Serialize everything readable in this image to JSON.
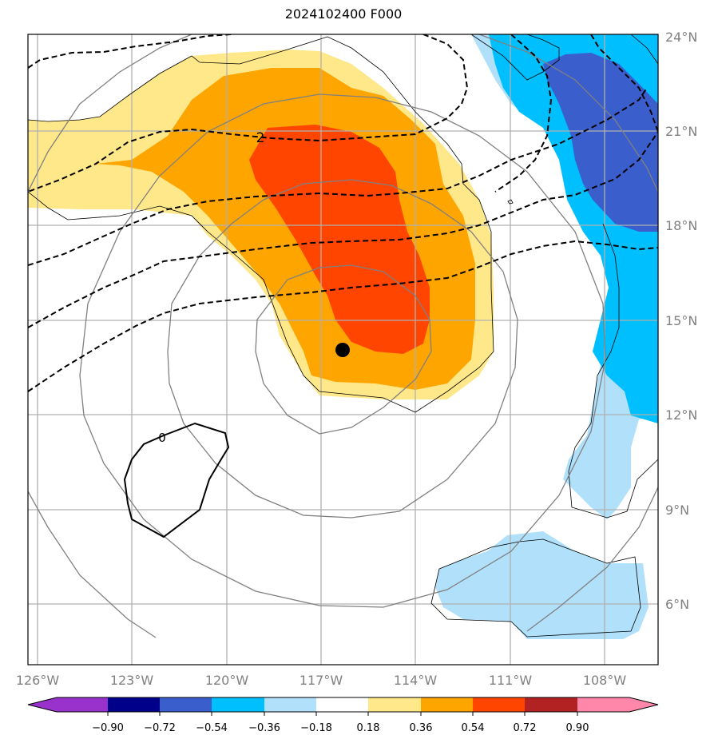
{
  "title": "2024102400 F000",
  "map": {
    "lon_ticks": [
      "126°W",
      "123°W",
      "120°W",
      "117°W",
      "114°W",
      "111°W",
      "108°W"
    ],
    "lat_ticks": [
      "24°N",
      "21°N",
      "18°N",
      "15°N",
      "12°N",
      "9°N",
      "6°N"
    ],
    "contour_labels": [
      "2",
      "0"
    ],
    "storm_center": {
      "lon": -116.4,
      "lat": 14.1
    }
  },
  "colorbar": {
    "ticks": [
      "−0.90",
      "−0.72",
      "−0.54",
      "−0.36",
      "−0.18",
      "0.18",
      "0.36",
      "0.54",
      "0.72",
      "0.90"
    ],
    "colors": [
      "#9932cc",
      "#00008b",
      "#3a5fcd",
      "#00bfff",
      "#b0e0fa",
      "#ffffff",
      "#ffe88a",
      "#ffa500",
      "#ff4500",
      "#b22222",
      "#ff88aa"
    ]
  }
}
